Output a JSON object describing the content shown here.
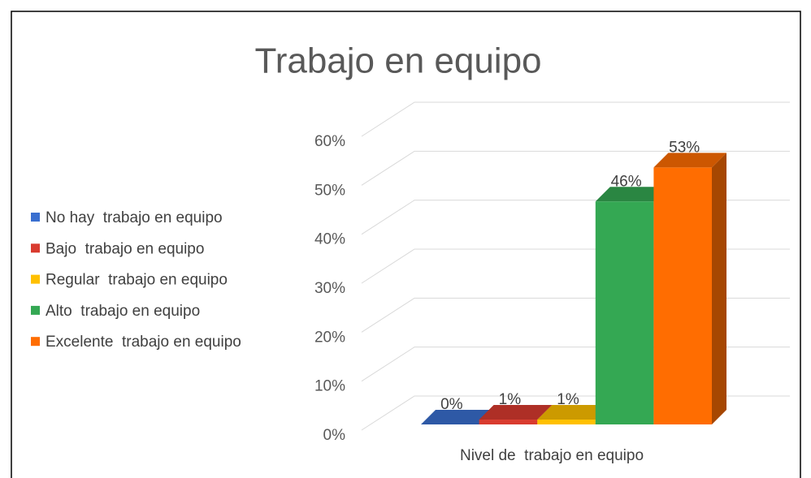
{
  "chart_data": {
    "type": "bar3d",
    "title": "Trabajo en equipo",
    "categories": [
      "Nivel de  trabajo en equipo"
    ],
    "series": [
      {
        "name": "No hay  trabajo en equipo",
        "color": "#3a6fd0",
        "values": [
          0
        ],
        "value_labels": [
          "0%"
        ]
      },
      {
        "name": "Bajo  trabajo en equipo",
        "color": "#d93b2f",
        "values": [
          1
        ],
        "value_labels": [
          "1%"
        ]
      },
      {
        "name": "Regular  trabajo en equipo",
        "color": "#ffc000",
        "values": [
          1
        ],
        "value_labels": [
          "1%"
        ]
      },
      {
        "name": "Alto  trabajo en equipo",
        "color": "#34a853",
        "values": [
          46
        ],
        "value_labels": [
          "46%"
        ]
      },
      {
        "name": "Excelente  trabajo en equipo",
        "color": "#ff6d01",
        "values": [
          53
        ],
        "value_labels": [
          "53%"
        ]
      }
    ],
    "ylim": [
      0,
      60
    ],
    "yticks": [
      {
        "value": 0,
        "label": "0%"
      },
      {
        "value": 10,
        "label": "10%"
      },
      {
        "value": 20,
        "label": "20%"
      },
      {
        "value": 30,
        "label": "30%"
      },
      {
        "value": 40,
        "label": "40%"
      },
      {
        "value": 50,
        "label": "50%"
      },
      {
        "value": 60,
        "label": "60%"
      }
    ],
    "grid": true,
    "legend": "left"
  }
}
